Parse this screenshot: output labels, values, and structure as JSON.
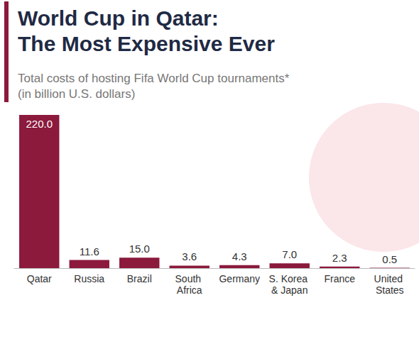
{
  "chart_data": {
    "type": "bar",
    "title": "World Cup in Qatar: The Most Expensive Ever",
    "subtitle": "Total costs of hosting Fifa World Cup tournaments* (in billion U.S. dollars)",
    "categories": [
      "Qatar",
      "Russia",
      "Brazil",
      "South Africa",
      "Germany",
      "S. Korea & Japan",
      "France",
      "United States"
    ],
    "values": [
      220.0,
      11.6,
      15.0,
      3.6,
      4.3,
      7.0,
      2.3,
      0.5
    ],
    "value_labels": [
      "220.0",
      "11.6",
      "15.0",
      "3.6",
      "4.3",
      "7.0",
      "2.3",
      "0.5"
    ],
    "color": "#8b1a3c",
    "ylim": [
      0,
      220
    ],
    "grid": false,
    "data_labels": true,
    "tick_labels": "x"
  }
}
